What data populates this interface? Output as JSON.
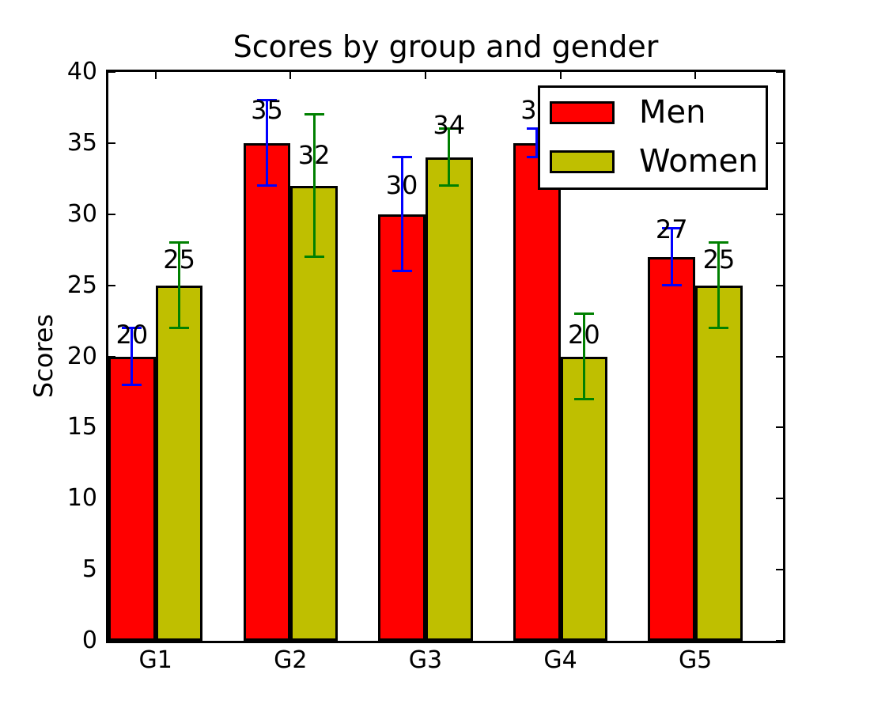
{
  "chart_data": {
    "type": "bar",
    "title": "Scores by group and gender",
    "xlabel": "",
    "ylabel": "Scores",
    "categories": [
      "G1",
      "G2",
      "G3",
      "G4",
      "G5"
    ],
    "series": [
      {
        "name": "Men",
        "color": "#ff0000",
        "values": [
          20,
          35,
          30,
          35,
          27
        ],
        "errors": [
          2,
          3,
          4,
          1,
          2
        ],
        "error_color": "#0000ff"
      },
      {
        "name": "Women",
        "color": "#bfbf00",
        "values": [
          25,
          32,
          34,
          20,
          25
        ],
        "errors": [
          3,
          5,
          2,
          3,
          3
        ],
        "error_color": "#008000"
      }
    ],
    "bar_width": 0.35,
    "xlim": [
      0,
      5
    ],
    "ylim": [
      0,
      40
    ],
    "yticks": [
      0,
      5,
      10,
      15,
      20,
      25,
      30,
      35,
      40
    ],
    "grid": false,
    "legend_position": "upper right",
    "axis_color": "#000000",
    "background_color": "#ffffff"
  }
}
